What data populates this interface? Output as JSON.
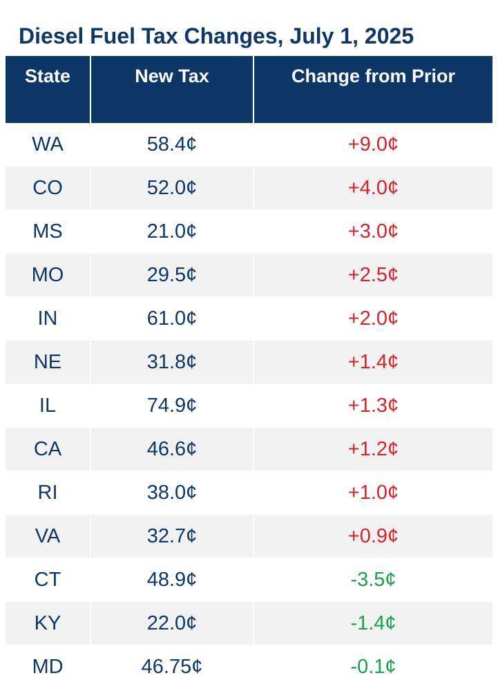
{
  "title": "Diesel Fuel Tax Changes, July 1, 2025",
  "colors": {
    "header_bg": "#0d3766",
    "text": "#0d3766",
    "increase": "#d6232a",
    "decrease": "#19a149",
    "stripe": "#f1f1f1"
  },
  "chart_data": {
    "type": "table",
    "title": "Diesel Fuel Tax Changes, July 1, 2025",
    "columns": [
      "State",
      "New Tax",
      "Change from Prior"
    ],
    "rows": [
      {
        "state": "WA",
        "new_tax": "58.4¢",
        "change": "+9.0¢",
        "new_tax_value": 58.4,
        "change_value": 9.0
      },
      {
        "state": "CO",
        "new_tax": "52.0¢",
        "change": "+4.0¢",
        "new_tax_value": 52.0,
        "change_value": 4.0
      },
      {
        "state": "MS",
        "new_tax": "21.0¢",
        "change": "+3.0¢",
        "new_tax_value": 21.0,
        "change_value": 3.0
      },
      {
        "state": "MO",
        "new_tax": "29.5¢",
        "change": "+2.5¢",
        "new_tax_value": 29.5,
        "change_value": 2.5
      },
      {
        "state": "IN",
        "new_tax": "61.0¢",
        "change": "+2.0¢",
        "new_tax_value": 61.0,
        "change_value": 2.0
      },
      {
        "state": "NE",
        "new_tax": "31.8¢",
        "change": "+1.4¢",
        "new_tax_value": 31.8,
        "change_value": 1.4
      },
      {
        "state": "IL",
        "new_tax": "74.9¢",
        "change": "+1.3¢",
        "new_tax_value": 74.9,
        "change_value": 1.3
      },
      {
        "state": "CA",
        "new_tax": "46.6¢",
        "change": "+1.2¢",
        "new_tax_value": 46.6,
        "change_value": 1.2
      },
      {
        "state": "RI",
        "new_tax": "38.0¢",
        "change": "+1.0¢",
        "new_tax_value": 38.0,
        "change_value": 1.0
      },
      {
        "state": "VA",
        "new_tax": "32.7¢",
        "change": "+0.9¢",
        "new_tax_value": 32.7,
        "change_value": 0.9
      },
      {
        "state": "CT",
        "new_tax": "48.9¢",
        "change": "-3.5¢",
        "new_tax_value": 48.9,
        "change_value": -3.5
      },
      {
        "state": "KY",
        "new_tax": "22.0¢",
        "change": "-1.4¢",
        "new_tax_value": 22.0,
        "change_value": -1.4
      },
      {
        "state": "MD",
        "new_tax": "46.75¢",
        "change": "-0.1¢",
        "new_tax_value": 46.75,
        "change_value": -0.1
      }
    ]
  }
}
